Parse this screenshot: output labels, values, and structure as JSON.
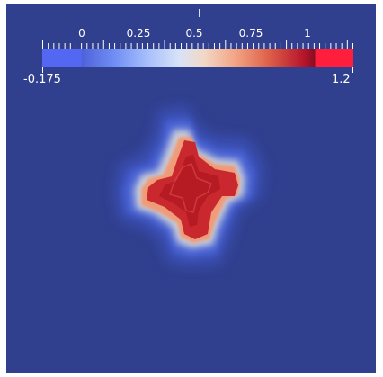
{
  "legend": {
    "title": "I",
    "tick_labels": [
      "0",
      "0.25",
      "0.5",
      "0.75",
      "1"
    ],
    "range_min": "-0.175",
    "range_max": "1.2",
    "colors": {
      "low": "#5467f2",
      "mid": "#dcdcdc",
      "high": "#b40426",
      "above_range": "#ff1e3c",
      "background": "#303f8e"
    }
  },
  "field": {
    "shape": "plus-cross",
    "colormap": "cool-to-warm"
  }
}
